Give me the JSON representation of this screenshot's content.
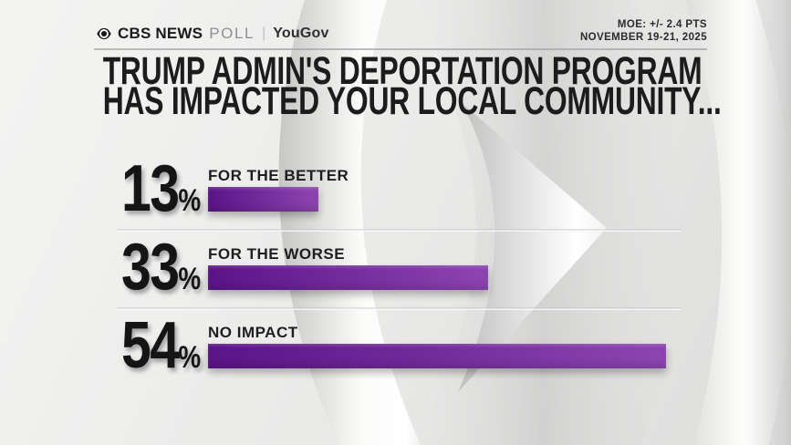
{
  "header": {
    "brand": {
      "cbs": "CBS NEWS",
      "poll": "POLL",
      "separator": "|",
      "partner": "YouGov"
    },
    "moe_line": "MOE: +/- 2.4 PTS",
    "date_line": "NOVEMBER 19-21, 2025"
  },
  "title": {
    "line1": "TRUMP ADMIN'S DEPORTATION PROGRAM",
    "line2": "HAS IMPACTED YOUR LOCAL COMMUNITY..."
  },
  "chart_data": {
    "type": "bar",
    "orientation": "horizontal",
    "title": "TRUMP ADMIN'S DEPORTATION PROGRAM HAS IMPACTED YOUR LOCAL COMMUNITY...",
    "categories": [
      "FOR THE BETTER",
      "FOR THE WORSE",
      "NO IMPACT"
    ],
    "values": [
      13,
      33,
      54
    ],
    "unit": "%",
    "xlim": [
      0,
      58
    ],
    "grid": false,
    "legend": false,
    "bar_gradient": [
      "#5b1488",
      "#8e45b1"
    ]
  },
  "colors": {
    "background": "#e9e9e8",
    "title_text": "#1c1c1c",
    "bar_dark": "#5b1488",
    "bar_light": "#8e45b1",
    "brand_gray": "#8f8f8f"
  }
}
